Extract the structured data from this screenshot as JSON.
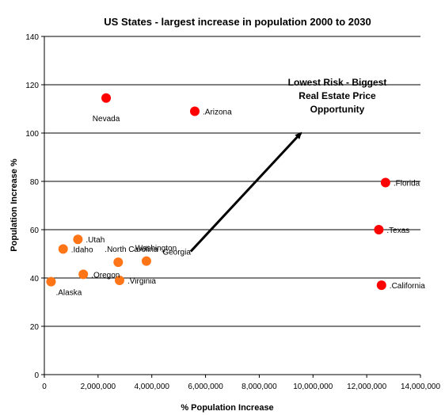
{
  "chart_data": {
    "type": "scatter",
    "title": "US States - largest increase in population 2000 to 2030",
    "xlabel": "% Population Increase",
    "ylabel": "Population Increase %",
    "xlim": [
      0,
      14000000
    ],
    "ylim": [
      0,
      140
    ],
    "x_ticks": [
      0,
      2000000,
      4000000,
      6000000,
      8000000,
      10000000,
      12000000,
      14000000
    ],
    "x_tick_labels": [
      "0",
      "2,000,000",
      "4,000,000",
      "6,000,000",
      "8,000,000",
      "10,000,000",
      "12,000,000",
      "14,000,000"
    ],
    "y_ticks": [
      0,
      20,
      40,
      60,
      80,
      100,
      120,
      140
    ],
    "y_tick_labels": [
      "0",
      "20",
      "40",
      "60",
      "80",
      "100",
      "120",
      "140"
    ],
    "grid": "horizontal",
    "points": [
      {
        "label": "Nevada",
        "x": 2300000,
        "y": 114.5,
        "color": "#ff0000",
        "label_pos": "below"
      },
      {
        "label": ".Arizona",
        "x": 5600000,
        "y": 109,
        "color": "#ff0000",
        "label_pos": "right"
      },
      {
        "label": ".Florida",
        "x": 12700000,
        "y": 79.5,
        "color": "#ff0000",
        "label_pos": "right"
      },
      {
        "label": ".Texas",
        "x": 12450000,
        "y": 60,
        "color": "#ff0000",
        "label_pos": "right"
      },
      {
        "label": ".California",
        "x": 12550000,
        "y": 37,
        "color": "#ff0000",
        "label_pos": "right"
      },
      {
        "label": ".Utah",
        "x": 1250000,
        "y": 56,
        "color": "#ff7518",
        "label_pos": "right"
      },
      {
        "label": ".Idaho",
        "x": 700000,
        "y": 52,
        "color": "#ff7518",
        "label_pos": "right"
      },
      {
        "label": ".North Carolina",
        "x": 2750000,
        "y": 46.5,
        "color": "#ff7518",
        "label_pos": "left-above"
      },
      {
        "label": ".Washington",
        "x": 3800000,
        "y": 47,
        "color": "#ff7518",
        "label_pos": "left-above"
      },
      {
        "label": ".Oregon",
        "x": 1450000,
        "y": 41.5,
        "color": "#ff7518",
        "label_pos": "right"
      },
      {
        "label": ".Virginia",
        "x": 2800000,
        "y": 39,
        "color": "#ff7518",
        "label_pos": "right"
      },
      {
        "label": ".Alaska",
        "x": 250000,
        "y": 38.5,
        "color": "#ff7518",
        "label_pos": "below-right"
      }
    ],
    "annotations": {
      "georgia_label": "Georgia",
      "arrow": {
        "from": [
          5450000,
          51
        ],
        "to": [
          9550000,
          100
        ]
      },
      "note_lines": [
        "Lowest Risk - Biggest",
        "Real Estate Price",
        "Opportunity"
      ]
    }
  }
}
